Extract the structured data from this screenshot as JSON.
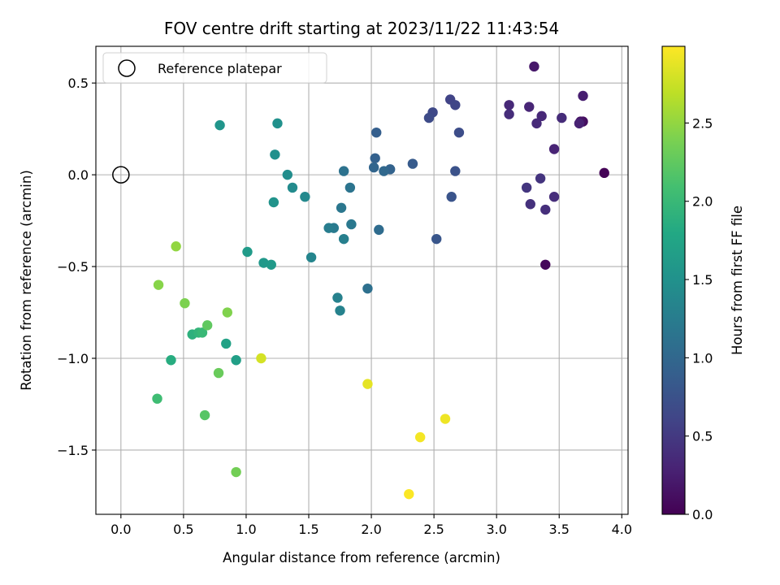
{
  "chart_data": {
    "type": "scatter",
    "title": "FOV centre drift starting at 2023/11/22 11:43:54",
    "xlabel": "Angular distance from reference (arcmin)",
    "ylabel": "Rotation from reference (arcmin)",
    "xlim": [
      -0.2,
      4.05
    ],
    "ylim": [
      -1.85,
      0.7
    ],
    "xticks": [
      0.0,
      0.5,
      1.0,
      1.5,
      2.0,
      2.5,
      3.0,
      3.5,
      4.0
    ],
    "xtick_labels": [
      "0.0",
      "0.5",
      "1.0",
      "1.5",
      "2.0",
      "2.5",
      "3.0",
      "3.5",
      "4.0"
    ],
    "yticks": [
      0.5,
      0.0,
      -0.5,
      -1.0,
      -1.5
    ],
    "ytick_labels": [
      "0.5",
      "0.0",
      "−0.5",
      "−1.0",
      "−1.5"
    ],
    "grid": true,
    "legend": {
      "position": "upper-left",
      "entries": [
        {
          "label": "Reference platepar",
          "marker": "hollow-circle"
        }
      ]
    },
    "reference_point": {
      "x": 0.0,
      "y": 0.0
    },
    "colorbar": {
      "label": "Hours from first FF file",
      "colormap": "viridis",
      "range": [
        0.0,
        2.99
      ],
      "ticks": [
        0.0,
        0.5,
        1.0,
        1.5,
        2.0,
        2.5
      ],
      "tick_labels": [
        "0.0",
        "0.5",
        "1.0",
        "1.5",
        "2.0",
        "2.5"
      ]
    },
    "points": [
      {
        "x": 3.86,
        "y": 0.01,
        "hours": 0.02
      },
      {
        "x": 3.39,
        "y": -0.49,
        "hours": 0.05
      },
      {
        "x": 3.69,
        "y": 0.29,
        "hours": 0.1
      },
      {
        "x": 3.67,
        "y": 0.29,
        "hours": 0.15
      },
      {
        "x": 3.3,
        "y": 0.59,
        "hours": 0.2
      },
      {
        "x": 3.69,
        "y": 0.43,
        "hours": 0.25
      },
      {
        "x": 3.66,
        "y": 0.28,
        "hours": 0.28
      },
      {
        "x": 3.46,
        "y": 0.14,
        "hours": 0.3
      },
      {
        "x": 3.26,
        "y": 0.37,
        "hours": 0.32
      },
      {
        "x": 3.36,
        "y": 0.32,
        "hours": 0.34
      },
      {
        "x": 3.1,
        "y": 0.38,
        "hours": 0.35
      },
      {
        "x": 3.32,
        "y": 0.28,
        "hours": 0.36
      },
      {
        "x": 3.52,
        "y": 0.31,
        "hours": 0.37
      },
      {
        "x": 3.1,
        "y": 0.33,
        "hours": 0.38
      },
      {
        "x": 3.46,
        "y": -0.12,
        "hours": 0.38
      },
      {
        "x": 3.39,
        "y": -0.19,
        "hours": 0.4
      },
      {
        "x": 3.27,
        "y": -0.16,
        "hours": 0.42
      },
      {
        "x": 3.35,
        "y": -0.02,
        "hours": 0.45
      },
      {
        "x": 3.24,
        "y": -0.07,
        "hours": 0.47
      },
      {
        "x": 2.63,
        "y": 0.41,
        "hours": 0.6
      },
      {
        "x": 2.67,
        "y": 0.38,
        "hours": 0.62
      },
      {
        "x": 2.49,
        "y": 0.34,
        "hours": 0.65
      },
      {
        "x": 2.46,
        "y": 0.31,
        "hours": 0.67
      },
      {
        "x": 2.7,
        "y": 0.23,
        "hours": 0.7
      },
      {
        "x": 2.67,
        "y": 0.02,
        "hours": 0.75
      },
      {
        "x": 2.64,
        "y": -0.12,
        "hours": 0.78
      },
      {
        "x": 2.52,
        "y": -0.35,
        "hours": 0.8
      },
      {
        "x": 2.33,
        "y": 0.06,
        "hours": 0.85
      },
      {
        "x": 2.04,
        "y": 0.23,
        "hours": 0.9
      },
      {
        "x": 2.03,
        "y": 0.09,
        "hours": 0.92
      },
      {
        "x": 2.15,
        "y": 0.03,
        "hours": 0.95
      },
      {
        "x": 2.02,
        "y": 0.04,
        "hours": 0.97
      },
      {
        "x": 2.1,
        "y": 0.02,
        "hours": 1.0
      },
      {
        "x": 2.06,
        "y": -0.3,
        "hours": 1.05
      },
      {
        "x": 1.97,
        "y": -0.62,
        "hours": 1.1
      },
      {
        "x": 1.78,
        "y": 0.02,
        "hours": 1.12
      },
      {
        "x": 1.83,
        "y": -0.07,
        "hours": 1.15
      },
      {
        "x": 1.76,
        "y": -0.18,
        "hours": 1.18
      },
      {
        "x": 1.84,
        "y": -0.27,
        "hours": 1.2
      },
      {
        "x": 1.7,
        "y": -0.29,
        "hours": 1.22
      },
      {
        "x": 1.66,
        "y": -0.29,
        "hours": 1.25
      },
      {
        "x": 1.78,
        "y": -0.35,
        "hours": 1.28
      },
      {
        "x": 1.73,
        "y": -0.67,
        "hours": 1.3
      },
      {
        "x": 1.75,
        "y": -0.74,
        "hours": 1.32
      },
      {
        "x": 1.52,
        "y": -0.45,
        "hours": 1.35
      },
      {
        "x": 1.47,
        "y": -0.12,
        "hours": 1.4
      },
      {
        "x": 1.37,
        "y": -0.07,
        "hours": 1.42
      },
      {
        "x": 1.33,
        "y": 0.0,
        "hours": 1.45
      },
      {
        "x": 1.23,
        "y": 0.11,
        "hours": 1.48
      },
      {
        "x": 1.25,
        "y": 0.28,
        "hours": 1.5
      },
      {
        "x": 1.22,
        "y": -0.15,
        "hours": 1.52
      },
      {
        "x": 0.79,
        "y": 0.27,
        "hours": 1.55
      },
      {
        "x": 1.14,
        "y": -0.48,
        "hours": 1.58
      },
      {
        "x": 1.2,
        "y": -0.49,
        "hours": 1.6
      },
      {
        "x": 1.01,
        "y": -0.42,
        "hours": 1.62
      },
      {
        "x": 0.92,
        "y": -1.01,
        "hours": 1.68
      },
      {
        "x": 0.84,
        "y": -0.92,
        "hours": 1.72
      },
      {
        "x": 0.4,
        "y": -1.01,
        "hours": 1.85
      },
      {
        "x": 0.57,
        "y": -0.87,
        "hours": 1.9
      },
      {
        "x": 0.62,
        "y": -0.86,
        "hours": 1.95
      },
      {
        "x": 0.65,
        "y": -0.86,
        "hours": 2.0
      },
      {
        "x": 0.29,
        "y": -1.22,
        "hours": 2.05
      },
      {
        "x": 0.67,
        "y": -1.31,
        "hours": 2.2
      },
      {
        "x": 0.69,
        "y": -0.82,
        "hours": 2.25
      },
      {
        "x": 0.78,
        "y": -1.08,
        "hours": 2.3
      },
      {
        "x": 0.92,
        "y": -1.62,
        "hours": 2.35
      },
      {
        "x": 0.51,
        "y": -0.7,
        "hours": 2.4
      },
      {
        "x": 0.85,
        "y": -0.75,
        "hours": 2.42
      },
      {
        "x": 0.3,
        "y": -0.6,
        "hours": 2.45
      },
      {
        "x": 0.44,
        "y": -0.39,
        "hours": 2.5
      },
      {
        "x": 1.12,
        "y": -1.0,
        "hours": 2.8
      },
      {
        "x": 1.97,
        "y": -1.14,
        "hours": 2.88
      },
      {
        "x": 2.59,
        "y": -1.33,
        "hours": 2.92
      },
      {
        "x": 2.39,
        "y": -1.43,
        "hours": 2.95
      },
      {
        "x": 2.3,
        "y": -1.74,
        "hours": 2.98
      }
    ]
  }
}
